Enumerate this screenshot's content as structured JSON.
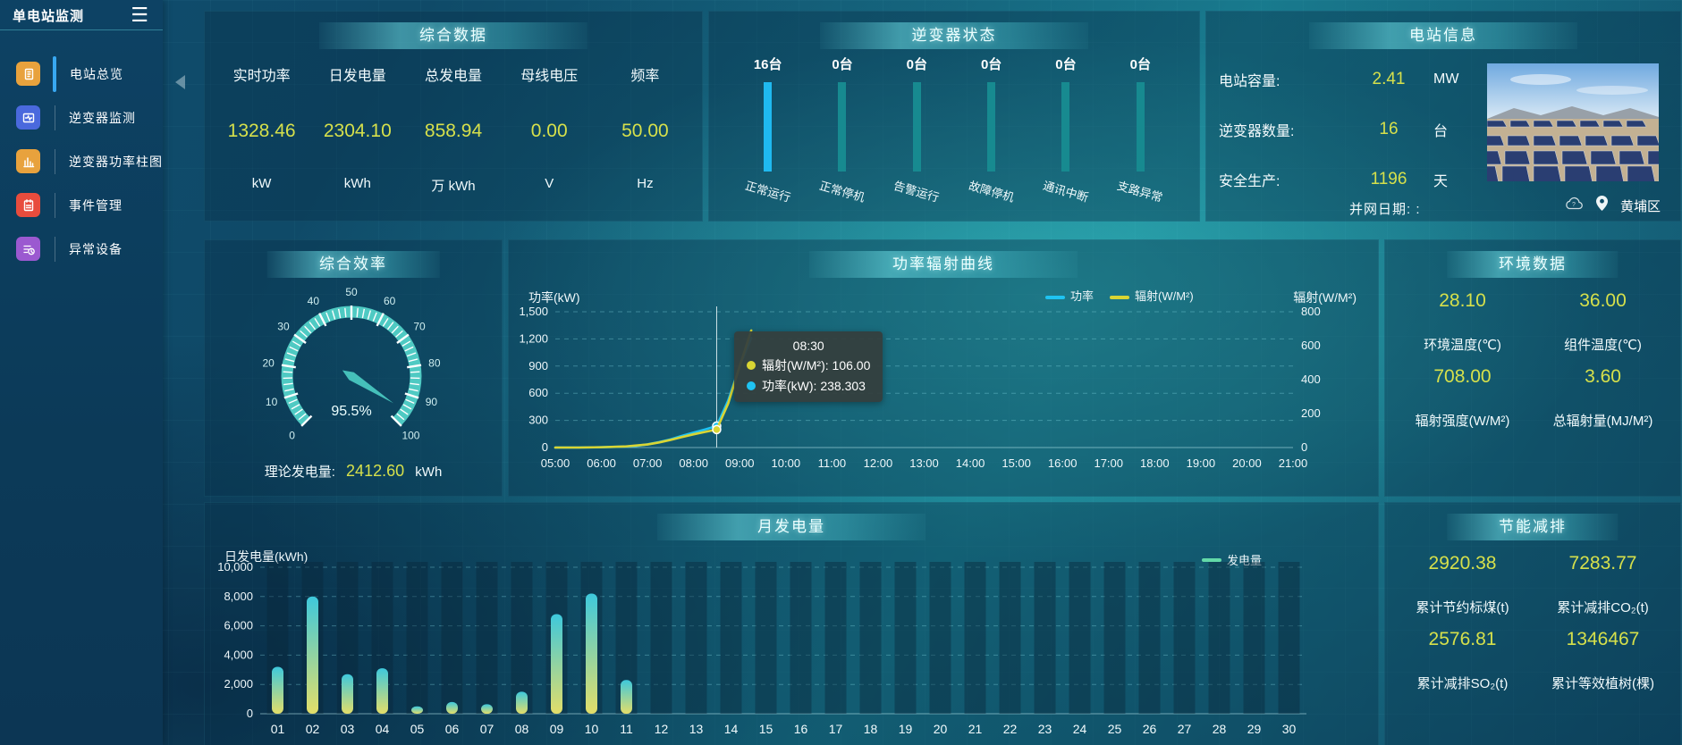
{
  "app": {
    "title": "单电站监测"
  },
  "sidebar": {
    "items": [
      {
        "label": "电站总览",
        "icon": "station-overview-icon",
        "color": "#e8a23d",
        "active": true
      },
      {
        "label": "逆变器监测",
        "icon": "inverter-monitor-icon",
        "color": "#4a69dd",
        "active": false
      },
      {
        "label": "逆变器功率柱图",
        "icon": "inverter-power-bars-icon",
        "color": "#e8a23d",
        "active": false
      },
      {
        "label": "事件管理",
        "icon": "event-management-icon",
        "color": "#e84c3d",
        "active": false
      },
      {
        "label": "异常设备",
        "icon": "abnormal-device-icon",
        "color": "#9b59d0",
        "active": false
      }
    ]
  },
  "summary": {
    "title": "综合数据",
    "stats": [
      {
        "label": "实时功率",
        "value": "1328.46",
        "unit": "kW"
      },
      {
        "label": "日发电量",
        "value": "2304.10",
        "unit": "kWh"
      },
      {
        "label": "总发电量",
        "value": "858.94",
        "unit": "万 kWh"
      },
      {
        "label": "母线电压",
        "value": "0.00",
        "unit": "V"
      },
      {
        "label": "频率",
        "value": "50.00",
        "unit": "Hz"
      }
    ]
  },
  "inverter_status": {
    "title": "逆变器状态",
    "items": [
      {
        "count": "16台",
        "label": "正常运行",
        "color": "#1fb9f0"
      },
      {
        "count": "0台",
        "label": "正常停机",
        "color": "#178a90"
      },
      {
        "count": "0台",
        "label": "告警运行",
        "color": "#178a90"
      },
      {
        "count": "0台",
        "label": "故障停机",
        "color": "#178a90"
      },
      {
        "count": "0台",
        "label": "通讯中断",
        "color": "#178a90"
      },
      {
        "count": "0台",
        "label": "支路异常",
        "color": "#178a90"
      }
    ]
  },
  "station_info": {
    "title": "电站信息",
    "rows": [
      {
        "label": "电站容量:",
        "value": "2.41",
        "unit": "MW"
      },
      {
        "label": "逆变器数量:",
        "value": "16",
        "unit": "台"
      },
      {
        "label": "安全生产:",
        "value": "1196",
        "unit": "天"
      }
    ],
    "grid_date_label": "并网日期:  :",
    "location": "黄埔区"
  },
  "efficiency": {
    "theory_label": "理论发电量:",
    "theory_value": "2412.60",
    "theory_unit": "kWh"
  },
  "environment": {
    "title": "环境数据",
    "stats": [
      {
        "value": "28.10",
        "label": "环境温度(℃)"
      },
      {
        "value": "36.00",
        "label": "组件温度(℃)"
      },
      {
        "value": "708.00",
        "label": "辐射强度(W/M²)"
      },
      {
        "value": "3.60",
        "label": "总辐射量(MJ/M²)"
      }
    ]
  },
  "saving": {
    "title": "节能减排",
    "stats": [
      {
        "value": "2920.38",
        "label": "累计节约标煤(t)"
      },
      {
        "value": "7283.77",
        "label": "累计减排CO₂(t)"
      },
      {
        "value": "2576.81",
        "label": "累计减排SO₂(t)"
      },
      {
        "value": "1346467",
        "label": "累计等效植树(棵)"
      }
    ]
  },
  "chart_data": [
    {
      "id": "efficiency_gauge",
      "type": "gauge",
      "title": "综合效率",
      "min": 0,
      "max": 100,
      "value": 95.5,
      "display": "95.5%",
      "tick_labels": [
        0,
        10,
        20,
        30,
        40,
        50,
        60,
        70,
        80,
        90,
        100
      ],
      "ring_color": "#4fcac3",
      "needle_color": "#45c0ba"
    },
    {
      "id": "power_radiation",
      "type": "line",
      "title": "功率辐射曲线",
      "left_axis": {
        "title": "功率(kW)",
        "min": 0,
        "max": 1500,
        "ticks": [
          0,
          300,
          600,
          900,
          1200,
          1500
        ]
      },
      "right_axis": {
        "title": "辐射(W/M²)",
        "min": 0,
        "max": 800,
        "ticks": [
          0,
          200,
          400,
          600,
          800
        ]
      },
      "x_labels": [
        "05:00",
        "06:00",
        "07:00",
        "08:00",
        "09:00",
        "10:00",
        "11:00",
        "12:00",
        "13:00",
        "14:00",
        "15:00",
        "16:00",
        "17:00",
        "18:00",
        "19:00",
        "20:00",
        "21:00"
      ],
      "x_range": [
        5,
        21
      ],
      "series": [
        {
          "name": "功率",
          "color": "#1fc3f2",
          "axis": "left",
          "points": [
            [
              5.0,
              0
            ],
            [
              5.5,
              0
            ],
            [
              6.0,
              3
            ],
            [
              6.5,
              10
            ],
            [
              6.75,
              18
            ],
            [
              7.0,
              35
            ],
            [
              7.25,
              60
            ],
            [
              7.5,
              90
            ],
            [
              7.75,
              130
            ],
            [
              8.0,
              165
            ],
            [
              8.25,
              200
            ],
            [
              8.5,
              238.303
            ],
            [
              8.75,
              520
            ],
            [
              9.0,
              900
            ],
            [
              9.25,
              1210
            ]
          ]
        },
        {
          "name": "辐射(W/M²)",
          "color": "#d9d533",
          "axis": "right",
          "points": [
            [
              5.0,
              0
            ],
            [
              5.5,
              0
            ],
            [
              6.0,
              2
            ],
            [
              6.5,
              6
            ],
            [
              7.0,
              18
            ],
            [
              7.25,
              30
            ],
            [
              7.5,
              45
            ],
            [
              7.75,
              62
            ],
            [
              8.0,
              78
            ],
            [
              8.25,
              92
            ],
            [
              8.5,
              106
            ],
            [
              8.75,
              260
            ],
            [
              9.0,
              480
            ],
            [
              9.25,
              690
            ]
          ]
        }
      ],
      "legend": [
        "功率",
        "辐射(W/M²)"
      ],
      "tooltip": {
        "x": 8.5,
        "title": "08:30",
        "rows": [
          {
            "color": "#d9d533",
            "text": "辐射(W/M²): 106.00"
          },
          {
            "color": "#1fc3f2",
            "text": "功率(kW): 238.303"
          }
        ]
      }
    },
    {
      "id": "monthly_generation",
      "type": "bar",
      "title": "月发电量",
      "ylabel": "日发电量(kWh)",
      "legend": "发电量",
      "legend_color": "#62d9a8",
      "ymax": 10000,
      "yticks": [
        0,
        2000,
        4000,
        6000,
        8000,
        10000
      ],
      "categories": [
        "01",
        "02",
        "03",
        "04",
        "05",
        "06",
        "07",
        "08",
        "09",
        "10",
        "11",
        "12",
        "13",
        "14",
        "15",
        "16",
        "17",
        "18",
        "19",
        "20",
        "21",
        "22",
        "23",
        "24",
        "25",
        "26",
        "27",
        "28",
        "29",
        "30"
      ],
      "values": [
        3200,
        8000,
        2700,
        3100,
        500,
        800,
        650,
        1500,
        6800,
        8200,
        2300,
        0,
        0,
        0,
        0,
        0,
        0,
        0,
        0,
        0,
        0,
        0,
        0,
        0,
        0,
        0,
        0,
        0,
        0,
        0
      ],
      "bar_gradient": [
        "#3ec8dc",
        "#e3de69"
      ]
    }
  ]
}
